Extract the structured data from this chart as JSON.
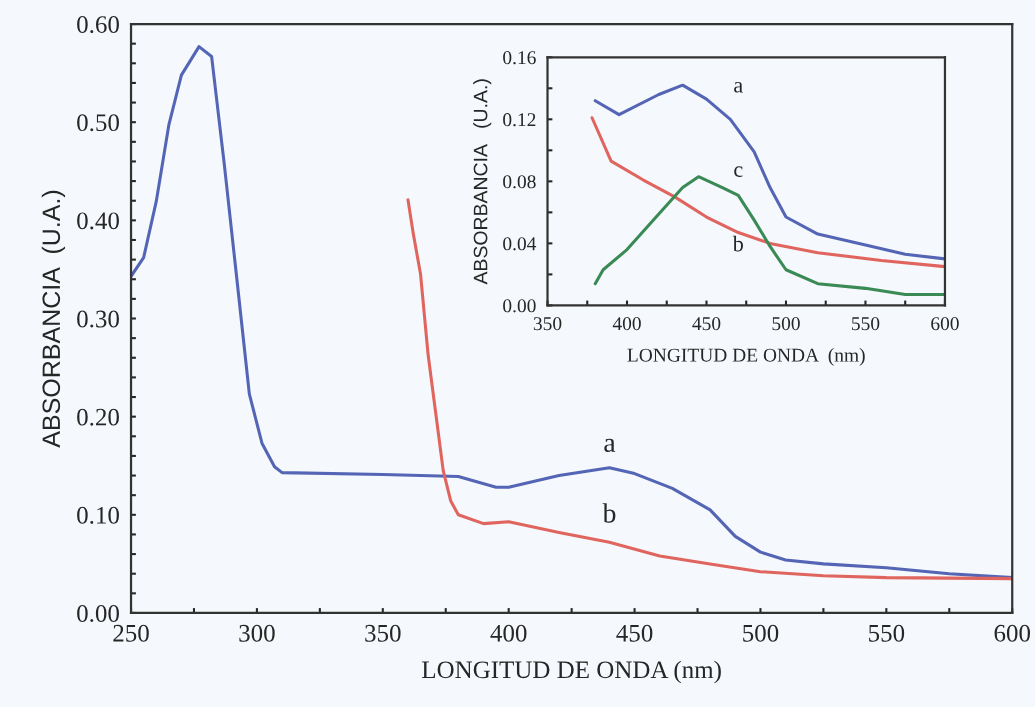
{
  "chart_data": [
    {
      "type": "line",
      "xlabel": "LONGITUD DE ONDA (nm)",
      "ylabel": "ABSORBANCIA  (U.A.)",
      "xlim": [
        250,
        600
      ],
      "ylim": [
        0,
        0.6
      ],
      "xticks": [
        250,
        {
          "value": 275,
          "label": null
        },
        300,
        {
          "value": 325,
          "label": null
        },
        350,
        {
          "value": 375,
          "label": null
        },
        400,
        {
          "value": 425,
          "label": null
        },
        450,
        {
          "value": 475,
          "label": null
        },
        500,
        {
          "value": 525,
          "label": null
        },
        550,
        {
          "value": 575,
          "label": null
        },
        600
      ],
      "yticks": [
        {
          "value": 0,
          "label": "0.00"
        },
        {
          "value": 0.02,
          "label": null
        },
        {
          "value": 0.04,
          "label": null
        },
        {
          "value": 0.06,
          "label": null
        },
        {
          "value": 0.08,
          "label": null
        },
        {
          "value": 0.1,
          "label": "0.10"
        },
        {
          "value": 0.12,
          "label": null
        },
        {
          "value": 0.14,
          "label": null
        },
        {
          "value": 0.16,
          "label": null
        },
        {
          "value": 0.18,
          "label": null
        },
        {
          "value": 0.2,
          "label": "0.20"
        },
        {
          "value": 0.22,
          "label": null
        },
        {
          "value": 0.24,
          "label": null
        },
        {
          "value": 0.26,
          "label": null
        },
        {
          "value": 0.28,
          "label": null
        },
        {
          "value": 0.3,
          "label": "0.30"
        },
        {
          "value": 0.32,
          "label": null
        },
        {
          "value": 0.34,
          "label": null
        },
        {
          "value": 0.36,
          "label": null
        },
        {
          "value": 0.38,
          "label": null
        },
        {
          "value": 0.4,
          "label": "0.40"
        },
        {
          "value": 0.42,
          "label": null
        },
        {
          "value": 0.44,
          "label": null
        },
        {
          "value": 0.46,
          "label": null
        },
        {
          "value": 0.48,
          "label": null
        },
        {
          "value": 0.5,
          "label": "0.50"
        },
        {
          "value": 0.52,
          "label": null
        },
        {
          "value": 0.54,
          "label": null
        },
        {
          "value": 0.56,
          "label": null
        },
        {
          "value": 0.58,
          "label": null
        },
        {
          "value": 0.6,
          "label": "0.60"
        }
      ],
      "grid": false,
      "series": [
        {
          "color": "#5565b5",
          "x": [
            250,
            255,
            260,
            265,
            270,
            277,
            282,
            287,
            292,
            297,
            302,
            307,
            310,
            350,
            380,
            395,
            400,
            420,
            440,
            450,
            465,
            480,
            490,
            500,
            510,
            525,
            550,
            575,
            600
          ],
          "values": [
            0.343,
            0.362,
            0.419,
            0.497,
            0.548,
            0.577,
            0.567,
            0.458,
            0.341,
            0.223,
            0.173,
            0.149,
            0.143,
            0.141,
            0.139,
            0.128,
            0.128,
            0.14,
            0.148,
            0.142,
            0.127,
            0.105,
            0.078,
            0.062,
            0.054,
            0.05,
            0.046,
            0.04,
            0.036
          ]
        },
        {
          "color": "#e0655e",
          "x": [
            360,
            362,
            365,
            368,
            371,
            374,
            377,
            380,
            390,
            400,
            420,
            440,
            460,
            480,
            500,
            525,
            550,
            600
          ],
          "values": [
            0.421,
            0.388,
            0.345,
            0.263,
            0.204,
            0.145,
            0.114,
            0.1,
            0.091,
            0.093,
            0.082,
            0.072,
            0.058,
            0.05,
            0.042,
            0.038,
            0.036,
            0.035
          ]
        }
      ],
      "annotations": [
        "a",
        "b"
      ]
    },
    {
      "type": "line",
      "xlabel": "LONGITUD DE ONDA  (nm)",
      "ylabel": "ABSORBANCIA   (U.A.)",
      "xlim": [
        350,
        600
      ],
      "ylim": [
        0,
        0.16
      ],
      "xticks": [
        350,
        {
          "value": 375,
          "label": null
        },
        400,
        {
          "value": 425,
          "label": null
        },
        450,
        {
          "value": 475,
          "label": null
        },
        500,
        {
          "value": 525,
          "label": null
        },
        550,
        {
          "value": 575,
          "label": null
        },
        600
      ],
      "yticks": [
        {
          "value": 0,
          "label": "0.00"
        },
        {
          "value": 0.02,
          "label": null
        },
        {
          "value": 0.04,
          "label": "0.04"
        },
        {
          "value": 0.06,
          "label": null
        },
        {
          "value": 0.08,
          "label": "0.08"
        },
        {
          "value": 0.1,
          "label": null
        },
        {
          "value": 0.12,
          "label": "0.12"
        },
        {
          "value": 0.14,
          "label": null
        },
        {
          "value": 0.16,
          "label": "0.16"
        }
      ],
      "grid": false,
      "series": [
        {
          "color": "#5565b5",
          "x": [
            380,
            395,
            420,
            435,
            450,
            465,
            480,
            490,
            500,
            520,
            550,
            575,
            600
          ],
          "values": [
            0.132,
            0.123,
            0.136,
            0.142,
            0.133,
            0.12,
            0.099,
            0.076,
            0.057,
            0.046,
            0.039,
            0.033,
            0.03
          ]
        },
        {
          "color": "#e0655e",
          "x": [
            378,
            390,
            410,
            430,
            450,
            470,
            490,
            520,
            560,
            600
          ],
          "values": [
            0.121,
            0.093,
            0.081,
            0.07,
            0.057,
            0.047,
            0.04,
            0.034,
            0.029,
            0.025
          ]
        },
        {
          "color": "#3a8a55",
          "x": [
            380,
            385,
            400,
            420,
            435,
            445,
            460,
            470,
            480,
            490,
            500,
            520,
            550,
            575,
            600
          ],
          "values": [
            0.014,
            0.023,
            0.036,
            0.059,
            0.076,
            0.083,
            0.076,
            0.071,
            0.055,
            0.038,
            0.023,
            0.014,
            0.011,
            0.007,
            0.007
          ]
        }
      ],
      "annotations": [
        "a",
        "c",
        "b"
      ]
    }
  ]
}
